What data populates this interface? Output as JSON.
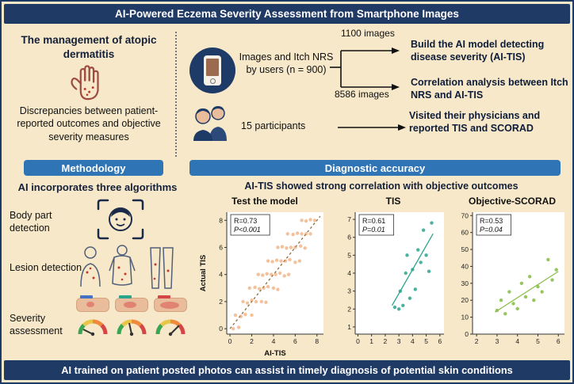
{
  "banners": {
    "top": "AI-Powered Eczema Severity Assessment from Smartphone Images",
    "bottom": "AI trained on patient posted photos can assist in timely diagnosis of potential skin conditions"
  },
  "problem": {
    "title": "The management of atopic dermatitis",
    "description": "Discrepancies between patient-reported outcomes and objective severity measures"
  },
  "flow": {
    "phone_label": "Images and Itch NRS by users (n = 900)",
    "images_top": "1100 images",
    "images_bottom": "8586 images",
    "outcome_build": "Build the AI model detecting disease severity (AI-TIS)",
    "outcome_correlation": "Correlation analysis between Itch NRS and AI-TIS",
    "participants": "15 participants",
    "outcome_visit": "Visited their physicians and reported TIS and SCORAD"
  },
  "sections": {
    "methodology": "Methodology",
    "diagnostic": "Diagnostic accuracy"
  },
  "methodology": {
    "title": "AI incorporates three algorithms",
    "steps": [
      "Body part detection",
      "Lesion detection",
      "Severity assessment"
    ]
  },
  "diagnostic": {
    "title": "AI-TIS showed strong correlation with objective outcomes"
  },
  "colors": {
    "navy": "#203a66",
    "section_blue": "#2f74b5",
    "background": "#f6e8c8",
    "scatter_orange": "#e8833a",
    "scatter_teal": "#2aa58d",
    "scatter_green": "#8cbf4e"
  },
  "chart_data": [
    {
      "type": "scatter",
      "title": "Test the model",
      "r_label": "R=0.73",
      "p_label": "P<0.001",
      "xlabel": "AI-TIS",
      "ylabel": "Actual TIS",
      "xlim": [
        -0.3,
        8.6
      ],
      "ylim": [
        -0.4,
        8.6
      ],
      "xticks": [
        0,
        2,
        4,
        6,
        8
      ],
      "yticks": [
        0,
        2,
        4,
        6,
        8
      ],
      "color": "#e8833a",
      "point_opacity": 0.5,
      "fit": {
        "x1": 0,
        "y1": 0,
        "x2": 8.3,
        "y2": 8.3,
        "dash": true,
        "color": "#8a6d3b"
      },
      "points": [
        [
          0.3,
          0
        ],
        [
          0.8,
          0.1
        ],
        [
          0.5,
          1
        ],
        [
          1,
          0.9
        ],
        [
          1.4,
          1.05
        ],
        [
          2,
          1
        ],
        [
          1.2,
          2
        ],
        [
          1.6,
          1.9
        ],
        [
          2,
          2.1
        ],
        [
          2.4,
          2
        ],
        [
          2.9,
          2
        ],
        [
          3.3,
          1.95
        ],
        [
          1.8,
          3
        ],
        [
          2.3,
          3.05
        ],
        [
          2.7,
          2.95
        ],
        [
          3.1,
          3
        ],
        [
          3.5,
          3.1
        ],
        [
          4,
          3
        ],
        [
          4.4,
          2.9
        ],
        [
          2.6,
          4
        ],
        [
          3,
          3.95
        ],
        [
          3.4,
          4.05
        ],
        [
          3.8,
          4
        ],
        [
          4.2,
          4
        ],
        [
          4.6,
          4.1
        ],
        [
          5,
          3.9
        ],
        [
          5.4,
          4
        ],
        [
          3.5,
          5
        ],
        [
          3.9,
          4.95
        ],
        [
          4.3,
          5.05
        ],
        [
          4.7,
          5
        ],
        [
          5.1,
          5
        ],
        [
          5.5,
          5.1
        ],
        [
          6,
          4.9
        ],
        [
          6.4,
          5
        ],
        [
          4.4,
          6
        ],
        [
          4.8,
          6.05
        ],
        [
          5.2,
          5.95
        ],
        [
          5.6,
          6
        ],
        [
          6,
          6
        ],
        [
          6.5,
          6.1
        ],
        [
          6.9,
          5.95
        ],
        [
          5.3,
          7
        ],
        [
          5.8,
          6.95
        ],
        [
          6.2,
          7.05
        ],
        [
          6.6,
          7
        ],
        [
          7,
          7
        ],
        [
          7.4,
          7
        ],
        [
          6.6,
          8
        ],
        [
          7,
          7.95
        ],
        [
          7.4,
          8.05
        ],
        [
          7.8,
          8
        ]
      ]
    },
    {
      "type": "scatter",
      "title": "TIS",
      "r_label": "R=0.61",
      "p_label": "P=0.01",
      "xlabel": "",
      "ylabel": "",
      "xlim": [
        -0.2,
        6.3
      ],
      "ylim": [
        0.6,
        7.4
      ],
      "xticks": [
        0,
        1,
        2,
        3,
        4,
        5,
        6
      ],
      "yticks": [
        1,
        2,
        3,
        4,
        5,
        6,
        7
      ],
      "color": "#2aa58d",
      "point_opacity": 0.85,
      "fit": {
        "x1": 2.5,
        "y1": 2.2,
        "x2": 5.5,
        "y2": 6.2,
        "dash": false,
        "color": "#2aa58d"
      },
      "points": [
        [
          2.7,
          2.1
        ],
        [
          3,
          2
        ],
        [
          3.1,
          3
        ],
        [
          3.3,
          2.2
        ],
        [
          3.5,
          4
        ],
        [
          3.6,
          5
        ],
        [
          3.8,
          2.6
        ],
        [
          4,
          4.2
        ],
        [
          4.2,
          3.1
        ],
        [
          4.4,
          5.3
        ],
        [
          4.6,
          4.6
        ],
        [
          4.8,
          6.4
        ],
        [
          5,
          5
        ],
        [
          5.2,
          4.1
        ],
        [
          5.4,
          6.8
        ]
      ]
    },
    {
      "type": "scatter",
      "title": "Objective-SCORAD",
      "r_label": "R=0.53",
      "p_label": "P=0.04",
      "xlabel": "",
      "ylabel": "",
      "xlim": [
        1.8,
        6.3
      ],
      "ylim": [
        0,
        72
      ],
      "xticks": [
        2,
        3,
        4,
        5,
        6
      ],
      "yticks": [
        0,
        10,
        20,
        30,
        40,
        50,
        60,
        70
      ],
      "color": "#8cbf4e",
      "point_opacity": 0.9,
      "fit": {
        "x1": 2.9,
        "y1": 13,
        "x2": 6,
        "y2": 37,
        "dash": false,
        "color": "#8cbf4e"
      },
      "points": [
        [
          3,
          14
        ],
        [
          3.2,
          20
        ],
        [
          3.4,
          12
        ],
        [
          3.6,
          25
        ],
        [
          3.8,
          18
        ],
        [
          4,
          15
        ],
        [
          4.2,
          30
        ],
        [
          4.4,
          22
        ],
        [
          4.6,
          34
        ],
        [
          4.8,
          20
        ],
        [
          5,
          28
        ],
        [
          5.2,
          25
        ],
        [
          5.5,
          44
        ],
        [
          5.7,
          32
        ],
        [
          5.9,
          38
        ]
      ]
    }
  ]
}
